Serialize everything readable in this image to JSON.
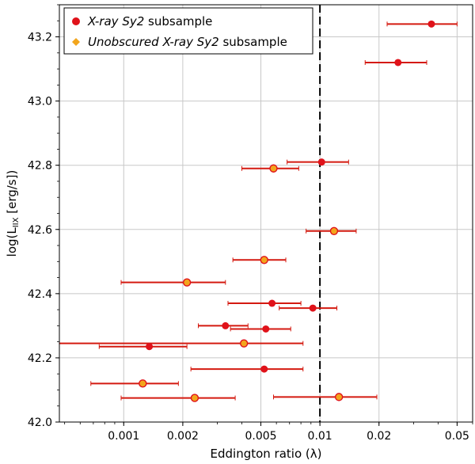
{
  "chart_data": {
    "type": "scatter",
    "xlabel": "Eddington ratio (λ)",
    "ylabel": "log(L_IIX [erg/s])",
    "xscale": "log",
    "xlim": [
      0.00047,
      0.06
    ],
    "ylim": [
      42.0,
      43.3
    ],
    "x_ticks": [
      0.001,
      0.002,
      0.005,
      0.01,
      0.02,
      0.05
    ],
    "x_tick_labels": [
      "0.001",
      "0.002",
      "0.005",
      "0.01",
      "0.02",
      "0.05"
    ],
    "y_ticks": [
      42.0,
      42.2,
      42.4,
      42.6,
      42.8,
      43.0,
      43.2
    ],
    "y_tick_labels": [
      "42.0",
      "42.2",
      "42.4",
      "42.6",
      "42.8",
      "43.0",
      "43.2"
    ],
    "grid": true,
    "legend_position": "top-left",
    "vline": {
      "x": 0.01,
      "style": "dashed",
      "color": "#000000"
    },
    "colors": {
      "xray": "#e0121a",
      "unobscured": "#f2a51c",
      "errorbar": "#d41a10"
    },
    "legend": [
      {
        "italic": "X-ray Sy2",
        "rest": " subsample",
        "series": "xray"
      },
      {
        "italic": "Unobscured X-ray Sy2",
        "rest": " subsample",
        "series": "unobscured"
      }
    ],
    "series": [
      {
        "name": "X-ray Sy2 subsample",
        "points": [
          {
            "x": 0.037,
            "y": 43.24,
            "xerr": [
              0.022,
              0.05
            ]
          },
          {
            "x": 0.025,
            "y": 43.12,
            "xerr": [
              0.017,
              0.035
            ]
          },
          {
            "x": 0.0102,
            "y": 42.81,
            "xerr": [
              0.0068,
              0.014
            ]
          },
          {
            "x": 0.0057,
            "y": 42.37,
            "xerr": [
              0.0034,
              0.008
            ]
          },
          {
            "x": 0.0092,
            "y": 42.355,
            "xerr": [
              0.0062,
              0.0122
            ]
          },
          {
            "x": 0.0033,
            "y": 42.3,
            "xerr": [
              0.0024,
              0.0043
            ]
          },
          {
            "x": 0.0053,
            "y": 42.29,
            "xerr": [
              0.0035,
              0.0071
            ]
          },
          {
            "x": 0.00135,
            "y": 42.235,
            "xerr": [
              0.00075,
              0.0021
            ]
          },
          {
            "x": 0.0052,
            "y": 42.165,
            "xerr": [
              0.0022,
              0.0082
            ]
          }
        ]
      },
      {
        "name": "Unobscured X-ray Sy2 subsample",
        "points": [
          {
            "x": 0.0058,
            "y": 42.79,
            "xerr": [
              0.004,
              0.0078
            ]
          },
          {
            "x": 0.0118,
            "y": 42.595,
            "xerr": [
              0.0085,
              0.0153
            ]
          },
          {
            "x": 0.0052,
            "y": 42.505,
            "xerr": [
              0.0036,
              0.0067
            ]
          },
          {
            "x": 0.0021,
            "y": 42.435,
            "xerr": [
              0.00097,
              0.0033
            ]
          },
          {
            "x": 0.0041,
            "y": 42.245,
            "xerr": [
              0.00047,
              0.0082
            ]
          },
          {
            "x": 0.00125,
            "y": 42.12,
            "xerr": [
              0.00068,
              0.0019
            ]
          },
          {
            "x": 0.0023,
            "y": 42.075,
            "xerr": [
              0.00097,
              0.0037
            ]
          },
          {
            "x": 0.0125,
            "y": 42.078,
            "xerr": [
              0.0058,
              0.0195
            ]
          }
        ]
      }
    ]
  }
}
